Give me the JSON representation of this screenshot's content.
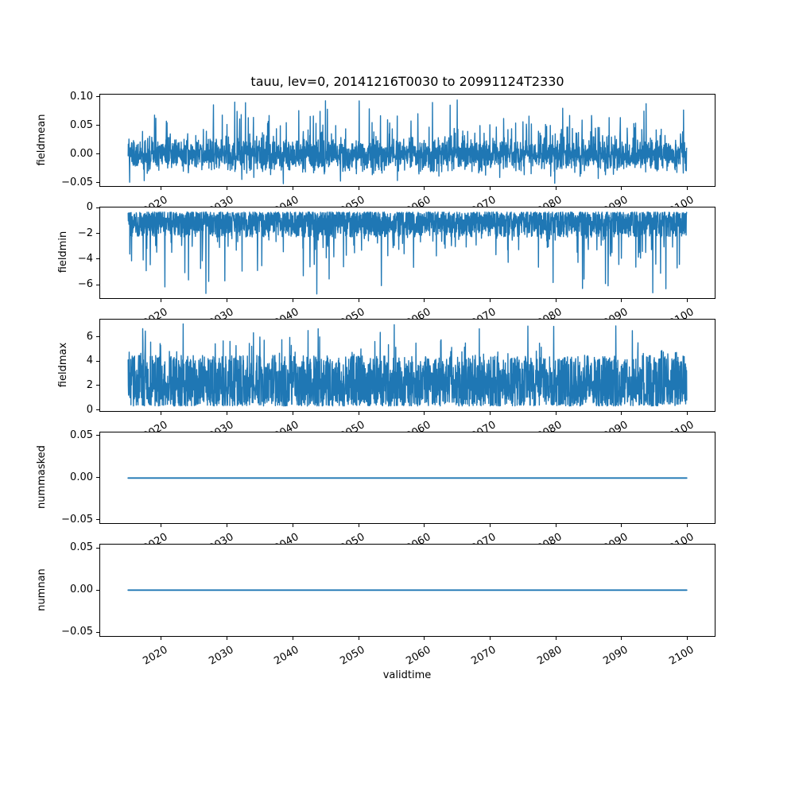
{
  "figure": {
    "title": "tauu, lev=0, 20141216T0030 to 20991124T2330",
    "xlabel": "validtime",
    "background_color": "#ffffff",
    "line_color": "#1f77b4",
    "axis_color": "#000000",
    "xticks": [
      {
        "value": 2020,
        "label": "2020"
      },
      {
        "value": 2030,
        "label": "2030"
      },
      {
        "value": 2040,
        "label": "2040"
      },
      {
        "value": 2050,
        "label": "2050"
      },
      {
        "value": 2060,
        "label": "2060"
      },
      {
        "value": 2070,
        "label": "2070"
      },
      {
        "value": 2080,
        "label": "2080"
      },
      {
        "value": 2090,
        "label": "2090"
      },
      {
        "value": 2100,
        "label": "2100"
      }
    ],
    "xlim": [
      2010.71,
      2104.15
    ],
    "x_range": [
      2014.96,
      2099.9
    ],
    "xtick_rotation_deg": 30
  },
  "chart_data": [
    {
      "type": "line",
      "ylabel": "fieldmean",
      "line_color": "#1f77b4",
      "ylim": [
        -0.0555,
        0.1035
      ],
      "yticks": [
        {
          "value": 0.1,
          "label": "0.10"
        },
        {
          "value": 0.05,
          "label": "0.05"
        },
        {
          "value": 0.0,
          "label": "0.00"
        },
        {
          "value": -0.05,
          "label": "−0.05"
        }
      ],
      "signal": {
        "kind": "noise",
        "seed": 101,
        "n": 2600,
        "band": {
          "offset": -0.04,
          "scale": 0.076,
          "power": 1,
          "terms": 3
        },
        "spikes": [
          {
            "prob": 0.085,
            "offset": 0.022,
            "scale": 0.055,
            "power": 2,
            "absolute": false
          },
          {
            "prob": 0.05,
            "offset": -0.012,
            "scale": -0.018,
            "power": 1.5,
            "absolute": false
          }
        ],
        "clamp": [
          -0.052,
          0.0955
        ]
      }
    },
    {
      "type": "line",
      "ylabel": "fieldmin",
      "line_color": "#1f77b4",
      "ylim": [
        -7.04,
        0.06
      ],
      "yticks": [
        {
          "value": 0,
          "label": "0"
        },
        {
          "value": -2,
          "label": "−2"
        },
        {
          "value": -4,
          "label": "−4"
        },
        {
          "value": -6,
          "label": "−6"
        }
      ],
      "signal": {
        "kind": "noise",
        "seed": 202,
        "n": 2600,
        "band": {
          "offset": -0.3,
          "scale": -1.95,
          "power": 1.5,
          "terms": 1
        },
        "spikes": [
          {
            "prob": 0.1,
            "offset": -0.2,
            "scale": -2.4,
            "power": 2,
            "absolute": false
          },
          {
            "prob": 0.013,
            "offset": -4.4,
            "scale": -2.3,
            "power": 1,
            "absolute": true
          }
        ],
        "clamp": [
          -6.7,
          -0.25
        ]
      }
    },
    {
      "type": "line",
      "ylabel": "fieldmax",
      "line_color": "#1f77b4",
      "ylim": [
        -0.05,
        7.4
      ],
      "yticks": [
        {
          "value": 6,
          "label": "6"
        },
        {
          "value": 4,
          "label": "4"
        },
        {
          "value": 2,
          "label": "2"
        },
        {
          "value": 0,
          "label": "0"
        }
      ],
      "signal": {
        "kind": "noise",
        "seed": 303,
        "n": 2600,
        "band": {
          "offset": 0.33,
          "scale": 4.15,
          "power": 1.35,
          "terms": 1
        },
        "spikes": [
          {
            "prob": 0.09,
            "offset": 0.15,
            "scale": 1.6,
            "power": 2,
            "absolute": false
          },
          {
            "prob": 0.011,
            "offset": 5.1,
            "scale": 1.95,
            "power": 1,
            "absolute": true
          }
        ],
        "clamp": [
          0.3,
          7.05
        ]
      }
    },
    {
      "type": "line",
      "ylabel": "nummasked",
      "line_color": "#1f77b4",
      "ylim": [
        -0.054,
        0.054
      ],
      "yticks": [
        {
          "value": 0.05,
          "label": "0.05"
        },
        {
          "value": 0.0,
          "label": "0.00"
        },
        {
          "value": -0.05,
          "label": "−0.05"
        }
      ],
      "signal": {
        "kind": "constant",
        "value": 0
      }
    },
    {
      "type": "line",
      "ylabel": "numnan",
      "line_color": "#1f77b4",
      "ylim": [
        -0.054,
        0.054
      ],
      "yticks": [
        {
          "value": 0.05,
          "label": "0.05"
        },
        {
          "value": 0.0,
          "label": "0.00"
        },
        {
          "value": -0.05,
          "label": "−0.05"
        }
      ],
      "signal": {
        "kind": "constant",
        "value": 0
      }
    }
  ]
}
